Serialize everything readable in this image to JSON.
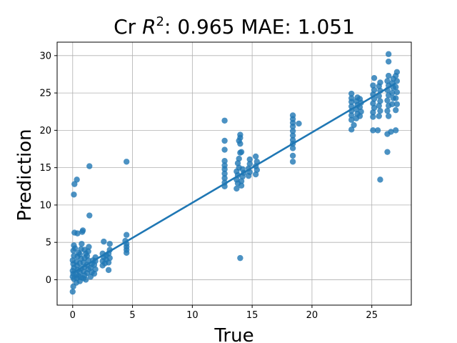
{
  "chart_data": {
    "type": "scatter",
    "title": {
      "prefix": "Cr ",
      "r": "R",
      "sup": "2",
      "rest": ": 0.965 MAE: 1.051"
    },
    "xlabel": "True",
    "ylabel": "Prediction",
    "xlim": [
      -1.3,
      28.3
    ],
    "ylim": [
      -3.4,
      31.8
    ],
    "xticks": [
      0,
      5,
      10,
      15,
      20,
      25
    ],
    "yticks": [
      0,
      5,
      10,
      15,
      20,
      25,
      30
    ],
    "grid": true,
    "colors": {
      "points": "#1f77b4",
      "line": "#1f77b4",
      "grid": "#b0b0b0"
    },
    "fit_line": {
      "x": [
        0,
        27
      ],
      "y": [
        0.9,
        26.3
      ]
    },
    "series": [
      {
        "points": [
          [
            0,
            -1.6
          ],
          [
            0.05,
            -0.9
          ],
          [
            0.1,
            0.1
          ],
          [
            0,
            0.4
          ],
          [
            0.05,
            0.8
          ],
          [
            0,
            1.2
          ],
          [
            0.1,
            1.6
          ],
          [
            0.05,
            2.1
          ],
          [
            0,
            2.6
          ],
          [
            0.1,
            3.2
          ],
          [
            0.05,
            3.9
          ],
          [
            0.1,
            4.6
          ],
          [
            0.2,
            4.2
          ],
          [
            0.15,
            6.3
          ],
          [
            0.1,
            11.4
          ],
          [
            0.15,
            12.8
          ],
          [
            0.35,
            13.4
          ],
          [
            0.4,
            6.2
          ],
          [
            0.3,
            -0.4
          ],
          [
            0.35,
            0.2
          ],
          [
            0.3,
            0.7
          ],
          [
            0.4,
            1.3
          ],
          [
            0.35,
            1.9
          ],
          [
            0.3,
            2.4
          ],
          [
            0.4,
            3.1
          ],
          [
            0.5,
            3.6
          ],
          [
            0.5,
            0.5
          ],
          [
            0.6,
            -0.2
          ],
          [
            0.7,
            0.3
          ],
          [
            0.6,
            1.0
          ],
          [
            0.7,
            1.5
          ],
          [
            0.6,
            2.2
          ],
          [
            0.7,
            2.8
          ],
          [
            0.6,
            3.4
          ],
          [
            0.7,
            4.1
          ],
          [
            0.75,
            4.8
          ],
          [
            0.8,
            6.4
          ],
          [
            0.85,
            6.6
          ],
          [
            0.9,
            0.2
          ],
          [
            1.0,
            0.6
          ],
          [
            0.9,
            1.1
          ],
          [
            1.0,
            1.7
          ],
          [
            0.9,
            2.3
          ],
          [
            1.0,
            2.9
          ],
          [
            1.1,
            3.5
          ],
          [
            1.0,
            4.0
          ],
          [
            1.1,
            0.0
          ],
          [
            1.2,
            0.9
          ],
          [
            1.3,
            1.4
          ],
          [
            1.2,
            2.0
          ],
          [
            1.3,
            2.6
          ],
          [
            1.2,
            3.2
          ],
          [
            1.3,
            3.8
          ],
          [
            1.35,
            4.4
          ],
          [
            1.4,
            8.6
          ],
          [
            1.4,
            15.2
          ],
          [
            1.5,
            0.4
          ],
          [
            1.6,
            1.0
          ],
          [
            1.5,
            1.6
          ],
          [
            1.6,
            2.1
          ],
          [
            1.7,
            2.6
          ],
          [
            1.8,
            0.8
          ],
          [
            1.9,
            1.4
          ],
          [
            1.8,
            2.0
          ],
          [
            1.9,
            2.5
          ],
          [
            1.9,
            3.0
          ],
          [
            2.5,
            1.9
          ],
          [
            2.5,
            2.5
          ],
          [
            2.6,
            3.0
          ],
          [
            2.5,
            3.5
          ],
          [
            2.6,
            5.1
          ],
          [
            2.7,
            2.2
          ],
          [
            2.8,
            2.7
          ],
          [
            2.8,
            3.3
          ],
          [
            3.0,
            1.3
          ],
          [
            3.0,
            2.3
          ],
          [
            3.1,
            2.9
          ],
          [
            3.0,
            3.5
          ],
          [
            3.1,
            4.0
          ],
          [
            3.1,
            4.8
          ],
          [
            4.5,
            3.6
          ],
          [
            4.5,
            4.0
          ],
          [
            4.5,
            4.4
          ],
          [
            4.5,
            4.8
          ],
          [
            4.4,
            5.2
          ],
          [
            4.5,
            6.0
          ],
          [
            4.5,
            15.8
          ],
          [
            12.7,
            12.5
          ],
          [
            12.7,
            13.0
          ],
          [
            12.7,
            13.6
          ],
          [
            12.7,
            14.2
          ],
          [
            12.7,
            14.8
          ],
          [
            12.7,
            15.3
          ],
          [
            12.7,
            15.9
          ],
          [
            12.7,
            17.4
          ],
          [
            12.7,
            18.6
          ],
          [
            12.7,
            21.3
          ],
          [
            13.7,
            12.2
          ],
          [
            13.8,
            12.9
          ],
          [
            13.7,
            13.4
          ],
          [
            13.8,
            14.0
          ],
          [
            13.7,
            14.5
          ],
          [
            13.9,
            15.0
          ],
          [
            13.8,
            15.6
          ],
          [
            13.9,
            16.2
          ],
          [
            14.0,
            17.0
          ],
          [
            14.0,
            18.2
          ],
          [
            13.9,
            18.6
          ],
          [
            14.0,
            19.0
          ],
          [
            14.0,
            19.4
          ],
          [
            14.0,
            2.9
          ],
          [
            14.1,
            12.6
          ],
          [
            14.1,
            13.2
          ],
          [
            14.2,
            13.8
          ],
          [
            14.3,
            14.3
          ],
          [
            14.2,
            14.8
          ],
          [
            14.1,
            17.1
          ],
          [
            14.7,
            13.9
          ],
          [
            14.8,
            14.4
          ],
          [
            14.7,
            14.9
          ],
          [
            14.8,
            15.5
          ],
          [
            14.8,
            16.1
          ],
          [
            15.3,
            14.1
          ],
          [
            15.4,
            14.7
          ],
          [
            15.3,
            15.2
          ],
          [
            15.4,
            15.8
          ],
          [
            15.3,
            16.5
          ],
          [
            18.4,
            15.8
          ],
          [
            18.4,
            16.6
          ],
          [
            18.4,
            17.6
          ],
          [
            18.4,
            18.2
          ],
          [
            18.4,
            18.7
          ],
          [
            18.4,
            19.3
          ],
          [
            18.4,
            19.9
          ],
          [
            18.4,
            20.5
          ],
          [
            18.4,
            21.0
          ],
          [
            18.4,
            21.5
          ],
          [
            18.4,
            22.0
          ],
          [
            18.9,
            20.9
          ],
          [
            23.3,
            20.1
          ],
          [
            23.3,
            21.4
          ],
          [
            23.3,
            22.0
          ],
          [
            23.3,
            22.6
          ],
          [
            23.3,
            23.2
          ],
          [
            23.3,
            23.8
          ],
          [
            23.3,
            24.3
          ],
          [
            23.3,
            24.9
          ],
          [
            23.5,
            20.7
          ],
          [
            23.7,
            21.6
          ],
          [
            23.8,
            22.2
          ],
          [
            23.7,
            22.8
          ],
          [
            23.8,
            23.4
          ],
          [
            23.7,
            23.9
          ],
          [
            23.8,
            24.4
          ],
          [
            24.0,
            21.9
          ],
          [
            24.1,
            22.5
          ],
          [
            24.0,
            23.1
          ],
          [
            24.1,
            23.7
          ],
          [
            24.0,
            24.2
          ],
          [
            25.1,
            20.0
          ],
          [
            25.1,
            21.8
          ],
          [
            25.1,
            22.4
          ],
          [
            25.2,
            23.0
          ],
          [
            25.1,
            23.6
          ],
          [
            25.2,
            24.2
          ],
          [
            25.1,
            24.8
          ],
          [
            25.2,
            25.4
          ],
          [
            25.1,
            26.0
          ],
          [
            25.2,
            27.0
          ],
          [
            25.5,
            20.0
          ],
          [
            25.6,
            21.9
          ],
          [
            25.7,
            22.6
          ],
          [
            25.6,
            23.3
          ],
          [
            25.7,
            23.9
          ],
          [
            25.6,
            24.6
          ],
          [
            25.7,
            25.3
          ],
          [
            25.6,
            25.9
          ],
          [
            25.7,
            26.4
          ],
          [
            25.7,
            13.4
          ],
          [
            26.3,
            17.1
          ],
          [
            26.3,
            19.5
          ],
          [
            26.4,
            21.9
          ],
          [
            26.3,
            22.6
          ],
          [
            26.4,
            23.3
          ],
          [
            26.3,
            24.0
          ],
          [
            26.4,
            24.7
          ],
          [
            26.3,
            25.4
          ],
          [
            26.4,
            26.0
          ],
          [
            26.3,
            26.6
          ],
          [
            26.4,
            27.3
          ],
          [
            26.4,
            29.2
          ],
          [
            26.4,
            30.2
          ],
          [
            26.6,
            19.8
          ],
          [
            26.7,
            23.5
          ],
          [
            26.8,
            24.3
          ],
          [
            26.7,
            25.0
          ],
          [
            26.8,
            25.7
          ],
          [
            26.7,
            26.3
          ],
          [
            26.8,
            26.9
          ],
          [
            27.0,
            20.0
          ],
          [
            27.0,
            22.7
          ],
          [
            27.1,
            23.5
          ],
          [
            27.0,
            24.3
          ],
          [
            27.1,
            25.1
          ],
          [
            27.0,
            25.8
          ],
          [
            27.1,
            26.6
          ],
          [
            27.0,
            27.3
          ],
          [
            27.1,
            27.8
          ]
        ]
      }
    ]
  }
}
